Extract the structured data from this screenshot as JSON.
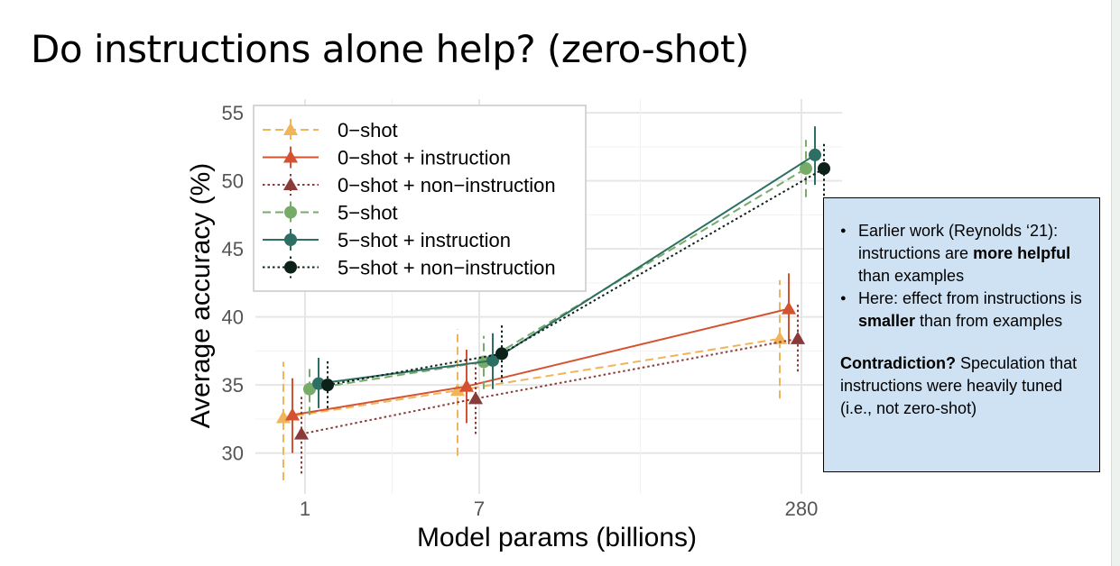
{
  "slide": {
    "title": "Do instructions alone help? (zero-shot)"
  },
  "callout": {
    "bullets": [
      {
        "pre": "Earlier work (Reynolds ‘21): instructions are ",
        "bold": "more helpful",
        "post": " than examples"
      },
      {
        "pre": "Here: effect from instructions is ",
        "bold": "smaller",
        "post": " than from examples"
      }
    ],
    "note_bold": "Contradiction?",
    "note_rest": " Speculation that instructions were heavily tuned (i.e., not zero-shot)"
  },
  "chart_data": {
    "type": "line",
    "title": "",
    "xlabel": "Model params (billions)",
    "ylabel": "Average accuracy (%)",
    "categories": [
      "1",
      "7",
      "280"
    ],
    "ylim": [
      27,
      56
    ],
    "yticks": [
      30,
      35,
      40,
      45,
      50,
      55
    ],
    "grid": true,
    "legend_position": "top-left",
    "series": [
      {
        "name": "0−shot",
        "color": "#f0b45a",
        "dash": "dashed",
        "marker": "triangle",
        "values": [
          32.6,
          34.6,
          38.4
        ],
        "lo": [
          28.0,
          29.8,
          34.0
        ],
        "hi": [
          36.7,
          39.1,
          42.7
        ]
      },
      {
        "name": "0−shot + instruction",
        "color": "#d55230",
        "dash": "solid",
        "marker": "triangle",
        "values": [
          32.8,
          34.9,
          40.6
        ],
        "lo": [
          30.0,
          32.2,
          38.0
        ],
        "hi": [
          35.5,
          37.6,
          43.2
        ]
      },
      {
        "name": "0−shot + non−instruction",
        "color": "#8b3a3a",
        "dash": "dotted",
        "marker": "triangle",
        "values": [
          31.4,
          34.0,
          38.4
        ],
        "lo": [
          28.5,
          31.4,
          36.0
        ],
        "hi": [
          34.3,
          36.6,
          41.0
        ]
      },
      {
        "name": "5−shot",
        "color": "#76ac68",
        "dash": "dashed",
        "marker": "circle",
        "values": [
          34.7,
          36.7,
          50.9
        ],
        "lo": [
          32.8,
          34.7,
          48.8
        ],
        "hi": [
          36.4,
          38.6,
          53.0
        ]
      },
      {
        "name": "5−shot + instruction",
        "color": "#2e6f63",
        "dash": "solid",
        "marker": "circle",
        "values": [
          35.1,
          36.8,
          51.9
        ],
        "lo": [
          33.3,
          34.7,
          49.7
        ],
        "hi": [
          37.0,
          38.8,
          54.0
        ]
      },
      {
        "name": "5−shot + non−instruction",
        "color": "#0c2118",
        "dash": "dotted",
        "marker": "circle",
        "values": [
          35.0,
          37.3,
          50.9
        ],
        "lo": [
          33.3,
          35.2,
          48.9
        ],
        "hi": [
          36.8,
          39.4,
          52.8
        ]
      }
    ]
  }
}
